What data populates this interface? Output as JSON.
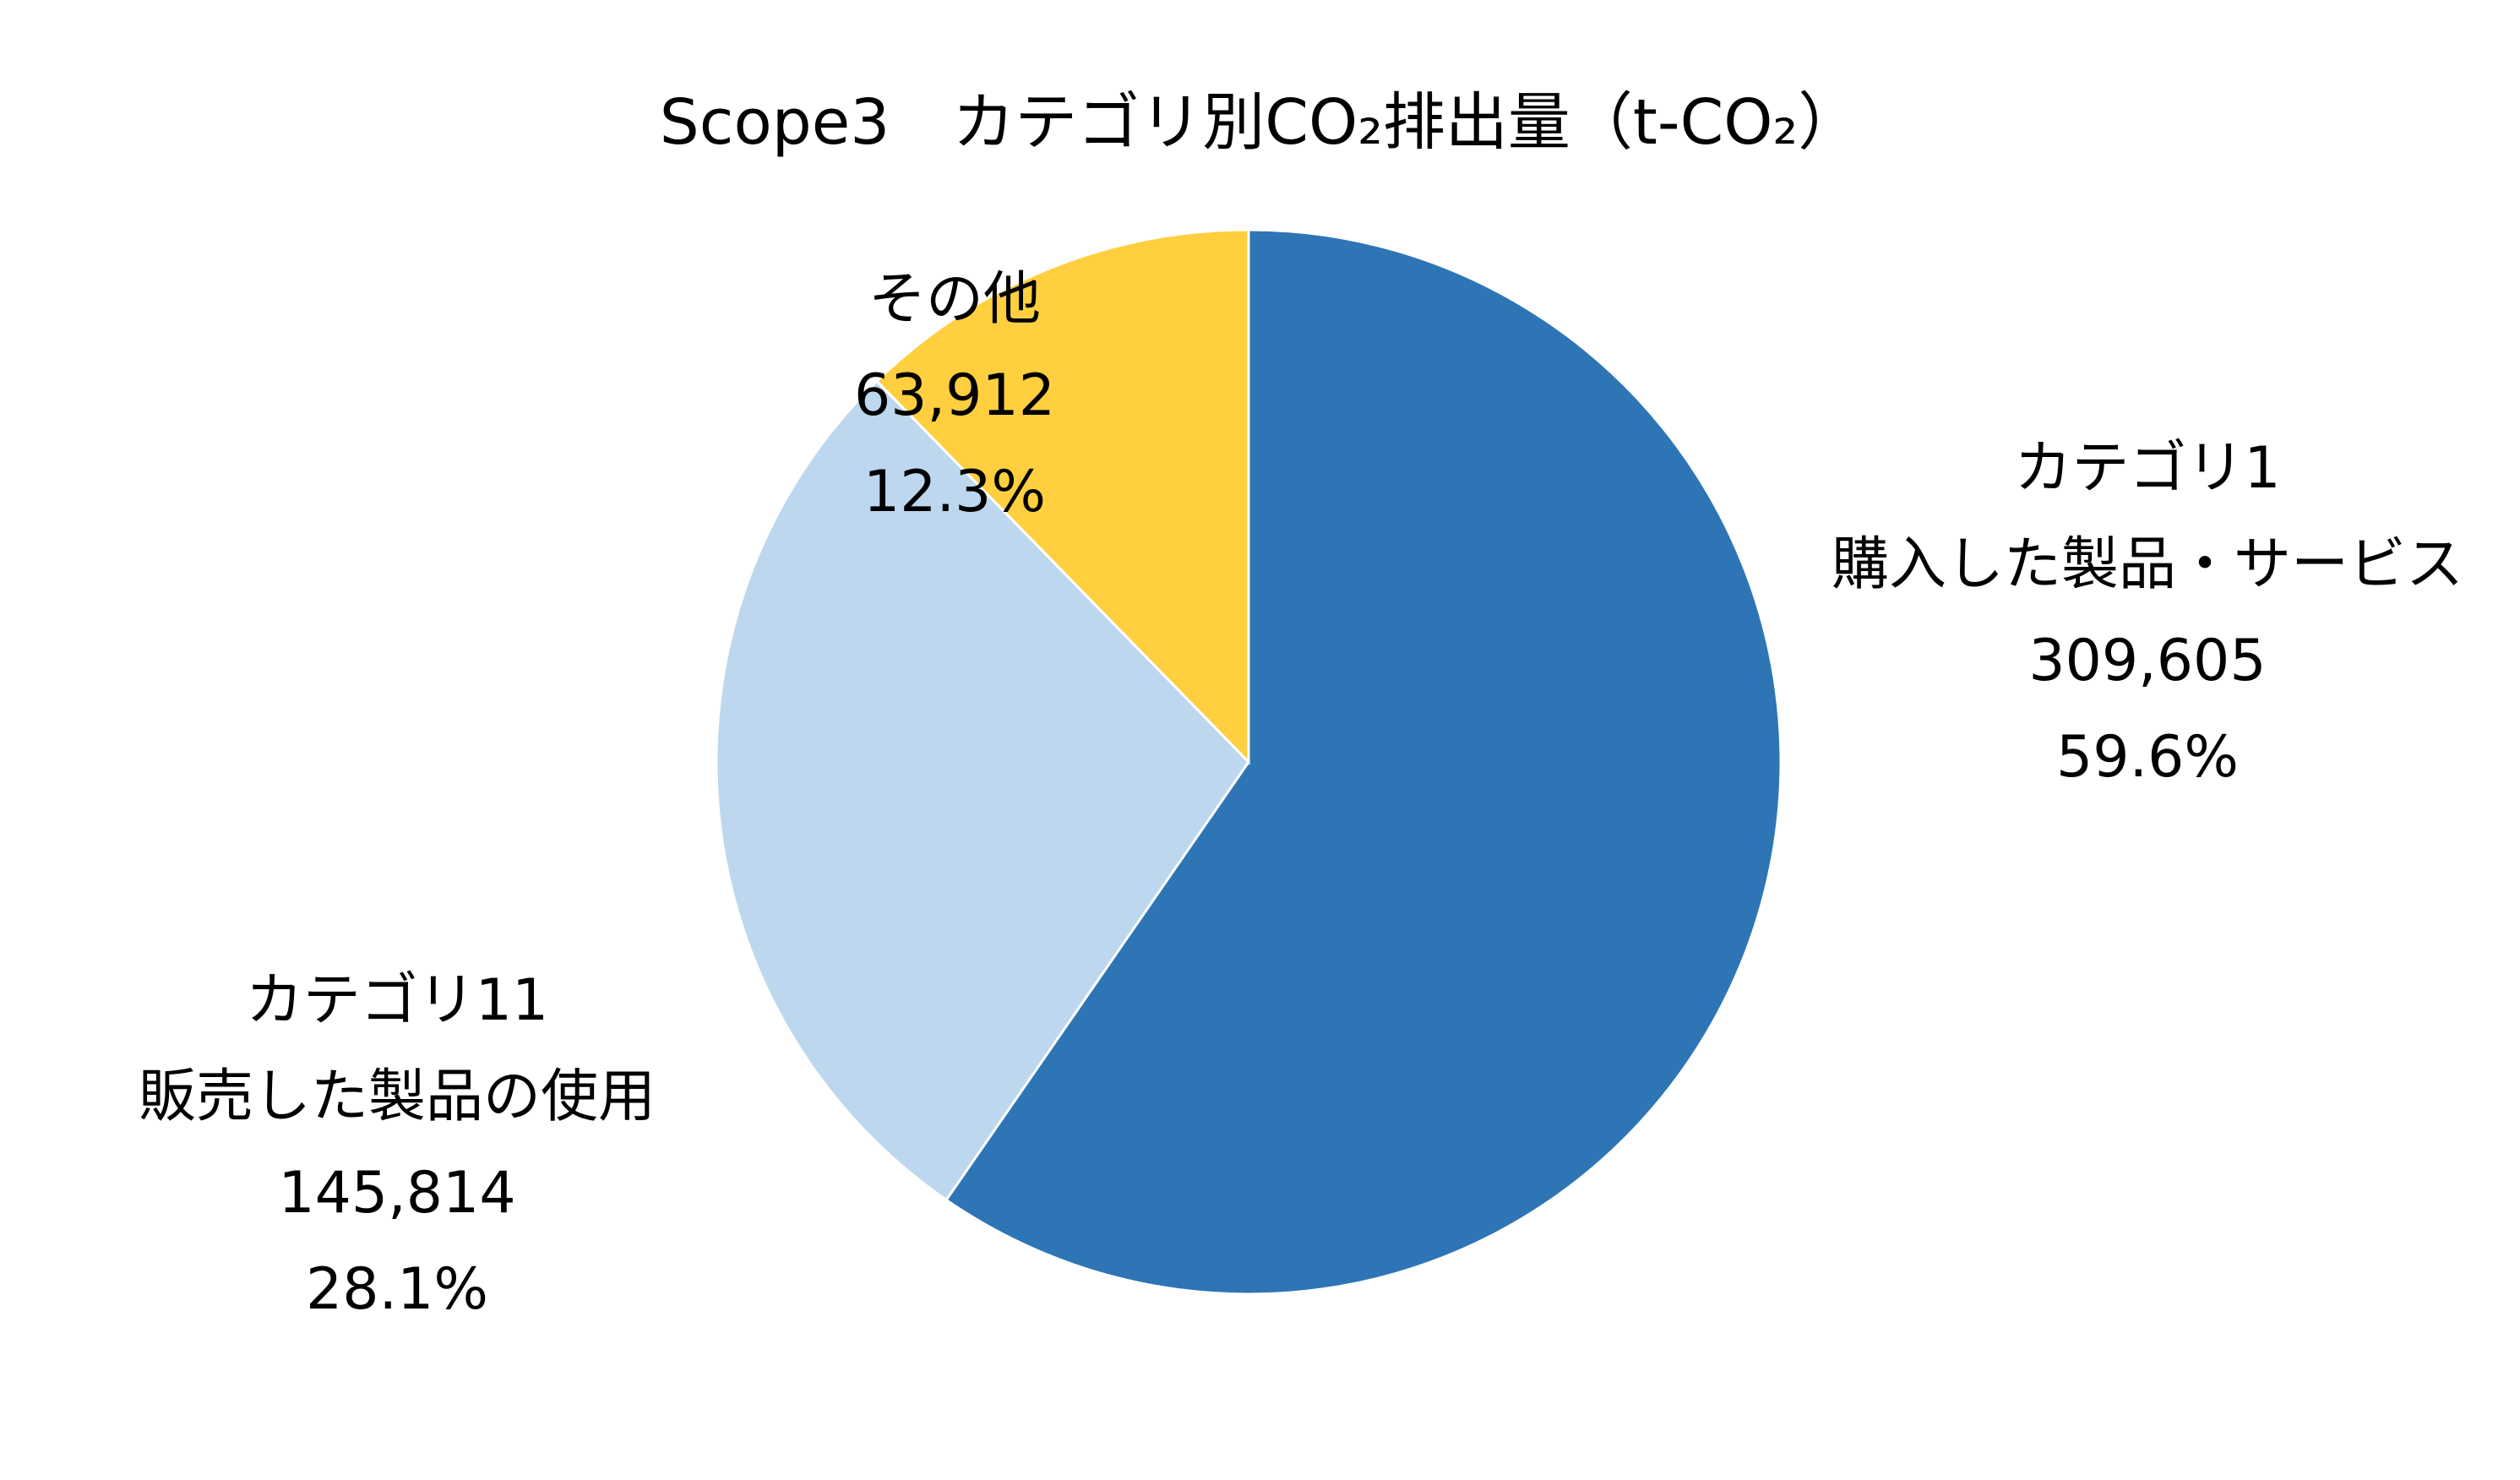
{
  "chart_data": {
    "type": "pie",
    "title": "Scope3　カテゴリ別CO₂排出量（t-CO₂）",
    "start": "12 o'clock",
    "direction": "clockwise",
    "slices": [
      {
        "category": "カテゴリ1",
        "label": "購入した製品・サービス",
        "value": 309605,
        "value_label": "309,605",
        "percent": 59.6,
        "percent_label": "59.6%",
        "color": "#2e75b6"
      },
      {
        "category": "カテゴリ11",
        "label": "販売した製品の使用",
        "value": 145814,
        "value_label": "145,814",
        "percent": 28.1,
        "percent_label": "28.1%",
        "color": "#bdd7ee"
      },
      {
        "category": "その他",
        "label": "",
        "value": 63912,
        "value_label": "63,912",
        "percent": 12.3,
        "percent_label": "12.3%",
        "color": "#ffcf3f"
      }
    ]
  }
}
